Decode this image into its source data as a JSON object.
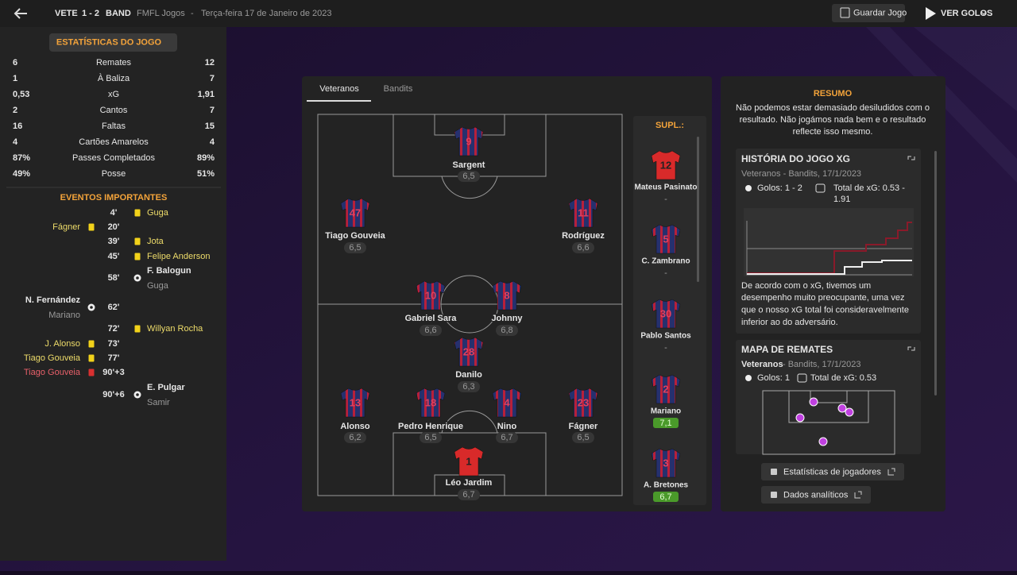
{
  "header": {
    "home": "VETE",
    "score": "1 - 2",
    "away": "BAND",
    "competition": "FMFL Jogos",
    "separator": "-",
    "date": "Terça-feira 17 de Janeiro de 2023",
    "save_button": "Guardar Jogo",
    "goals_button": "VER GOLOS"
  },
  "stats": {
    "title": "ESTATÍSTICAS DO JOGO",
    "rows": [
      [
        "6",
        "Remates",
        "12"
      ],
      [
        "1",
        "À Baliza",
        "7"
      ],
      [
        "0,53",
        "xG",
        "1,91"
      ],
      [
        "2",
        "Cantos",
        "7"
      ],
      [
        "16",
        "Faltas",
        "15"
      ],
      [
        "4",
        "Cartões Amarelos",
        "4"
      ],
      [
        "87%",
        "Passes Completados",
        "89%"
      ],
      [
        "49%",
        "Posse",
        "51%"
      ]
    ]
  },
  "events": {
    "title": "EVENTOS IMPORTANTES",
    "items": [
      {
        "side": "away",
        "kind": "yellow",
        "minute": "4'",
        "player": "Guga"
      },
      {
        "side": "home",
        "kind": "yellow",
        "minute": "20'",
        "player": "Fágner"
      },
      {
        "side": "away",
        "kind": "yellow",
        "minute": "39'",
        "player": "Jota"
      },
      {
        "side": "away",
        "kind": "yellow",
        "minute": "45'",
        "player": "Felipe Anderson"
      },
      {
        "side": "away",
        "kind": "goal",
        "minute": "58'",
        "player": "F. Balogun",
        "detail": "Guga"
      },
      {
        "side": "home",
        "kind": "goal",
        "minute": "62'",
        "player": "N. Fernández",
        "detail": "Mariano"
      },
      {
        "side": "away",
        "kind": "yellow",
        "minute": "72'",
        "player": "Willyan Rocha"
      },
      {
        "side": "home",
        "kind": "yellow",
        "minute": "73'",
        "player": "J. Alonso"
      },
      {
        "side": "home",
        "kind": "yellow",
        "minute": "77'",
        "player": "Tiago Gouveia"
      },
      {
        "side": "home",
        "kind": "red",
        "minute": "90'+3",
        "player": "Tiago Gouveia"
      },
      {
        "side": "away",
        "kind": "goal",
        "minute": "90'+6",
        "player": "E. Pulgar",
        "detail": "Samir"
      }
    ]
  },
  "lineup": {
    "tabs": [
      "Veteranos",
      "Bandits"
    ],
    "players": [
      {
        "number": "9",
        "name": "Sargent",
        "rating": "6,5"
      },
      {
        "number": "47",
        "name": "Tiago Gouveia",
        "rating": "6,5"
      },
      {
        "number": "11",
        "name": "Rodríguez",
        "rating": "6,6"
      },
      {
        "number": "10",
        "name": "Gabriel Sara",
        "rating": "6,6"
      },
      {
        "number": "8",
        "name": "Johnny",
        "rating": "6,8"
      },
      {
        "number": "28",
        "name": "Danilo",
        "rating": "6,3"
      },
      {
        "number": "13",
        "name": "Alonso",
        "rating": "6,2"
      },
      {
        "number": "18",
        "name": "Pedro Henrique",
        "rating": "6,5"
      },
      {
        "number": "4",
        "name": "Nino",
        "rating": "6,7"
      },
      {
        "number": "23",
        "name": "Fágner",
        "rating": "6,5"
      },
      {
        "number": "1",
        "name": "Léo Jardim",
        "rating": "6,7"
      }
    ],
    "subs_title": "SUPL.:",
    "subs": [
      {
        "number": "12",
        "name": "Mateus Pasinato",
        "rating": "-"
      },
      {
        "number": "5",
        "name": "C. Zambrano",
        "rating": "-"
      },
      {
        "number": "30",
        "name": "Pablo Santos",
        "rating": "-"
      },
      {
        "number": "2",
        "name": "Mariano",
        "rating": "7,1"
      },
      {
        "number": "3",
        "name": "A. Bretones",
        "rating": "6,7"
      }
    ]
  },
  "summary": {
    "title": "RESUMO",
    "lines": [
      "Não podemos estar demasiado desiludidos com o",
      "resultado. Não jogámos nada bem e o resultado",
      "reflecte isso mesmo."
    ],
    "xg_card": {
      "title": "HISTÓRIA DO JOGO XG",
      "meta": "Veteranos - Bandits, 17/1/2023",
      "goals": "Golos: 1 - 2",
      "xg_lines": [
        "Total de xG: 0.53 -",
        "1.91"
      ],
      "lines": [
        "De acordo com o xG, tivemos um",
        "desempenho muito preocupante, uma vez",
        "que o nosso xG total foi consideravelmente",
        "inferior ao do adversário."
      ]
    },
    "shots_card": {
      "title": "MAPA DE REMATES",
      "team": "Veteranos",
      "meta": " - Bandits, 17/1/2023",
      "goals": "Golos: 1",
      "xg": "Total de xG: 0.53"
    },
    "buttons": [
      "Estatísticas de jogadores",
      "Dados analíticos"
    ]
  }
}
